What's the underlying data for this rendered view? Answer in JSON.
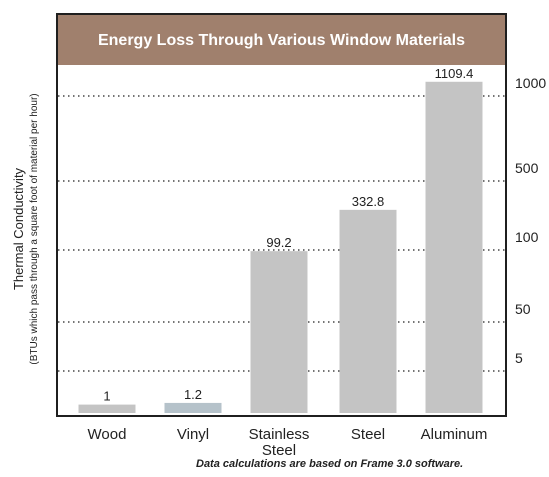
{
  "chart_data": {
    "type": "bar",
    "title": "Energy Loss Through Various Window Materials",
    "ylabel": "Thermal Conductivity",
    "ylabel_sub": "(BTUs which pass through a square foot of material per hour)",
    "categories": [
      "Wood",
      "Vinyl",
      "Stainless Steel",
      "Steel",
      "Aluminum"
    ],
    "values": [
      1,
      1.2,
      99.2,
      332.8,
      1109.4
    ],
    "value_labels": [
      "1",
      "1.2",
      "99.2",
      "332.8",
      "1109.4"
    ],
    "y_ticks": [
      5,
      50,
      100,
      500,
      1000
    ],
    "y_scale": "non-linear (ticks at 5, 50, 100, 500, 1000)",
    "grid": "dotted horizontal lines at each tick",
    "legend": "none",
    "colors": {
      "title_band": "#a0806d",
      "bar": "#c4c4c4",
      "bar_highlight": "#b5c2ca",
      "grid": "#222222"
    }
  },
  "footnote": "Data calculations are based on Frame 3.0 software."
}
